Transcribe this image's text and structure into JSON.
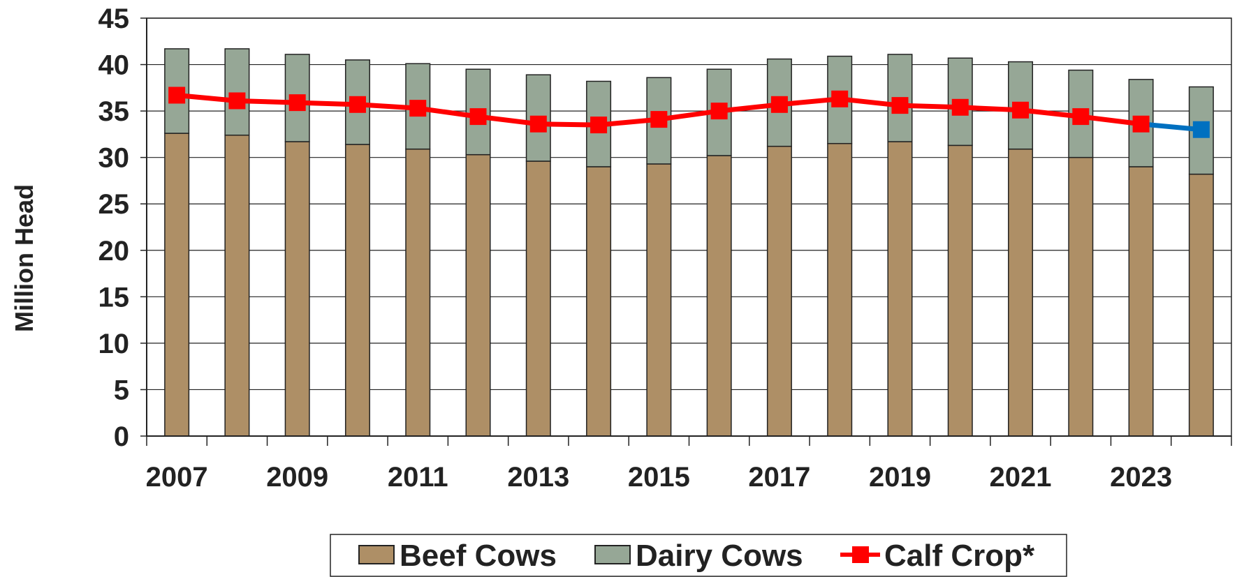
{
  "chart_data": {
    "type": "bar",
    "stacked": true,
    "categories": [
      "2007",
      "2008",
      "2009",
      "2010",
      "2011",
      "2012",
      "2013",
      "2014",
      "2015",
      "2016",
      "2017",
      "2018",
      "2019",
      "2020",
      "2021",
      "2022",
      "2023",
      "2024"
    ],
    "x_tick_labels": [
      "2007",
      "2009",
      "2011",
      "2013",
      "2015",
      "2017",
      "2019",
      "2021",
      "2023"
    ],
    "series": [
      {
        "name": "Beef Cows",
        "type": "bar",
        "color": "#ae8f66",
        "values": [
          32.6,
          32.4,
          31.7,
          31.4,
          30.9,
          30.3,
          29.6,
          29.0,
          29.3,
          30.2,
          31.2,
          31.5,
          31.7,
          31.3,
          30.9,
          30.0,
          29.0,
          28.2
        ]
      },
      {
        "name": "Dairy Cows",
        "type": "bar",
        "color": "#96a796",
        "values": [
          9.1,
          9.3,
          9.4,
          9.1,
          9.2,
          9.2,
          9.3,
          9.2,
          9.3,
          9.3,
          9.4,
          9.4,
          9.4,
          9.4,
          9.4,
          9.4,
          9.4,
          9.4
        ]
      },
      {
        "name": "Calf Crop*",
        "type": "line",
        "color": "#ff0000",
        "projection_color": "#0070c0",
        "values": [
          36.7,
          36.1,
          35.9,
          35.7,
          35.3,
          34.4,
          33.6,
          33.5,
          34.1,
          35.0,
          35.7,
          36.3,
          35.6,
          35.4,
          35.1,
          34.4,
          33.6,
          33.0
        ]
      }
    ],
    "title": "",
    "xlabel": "",
    "ylabel": "Million Head",
    "ylim": [
      0,
      45
    ],
    "y_ticks": [
      0,
      5,
      10,
      15,
      20,
      25,
      30,
      35,
      40,
      45
    ],
    "grid": true,
    "legend_position": "bottom"
  }
}
